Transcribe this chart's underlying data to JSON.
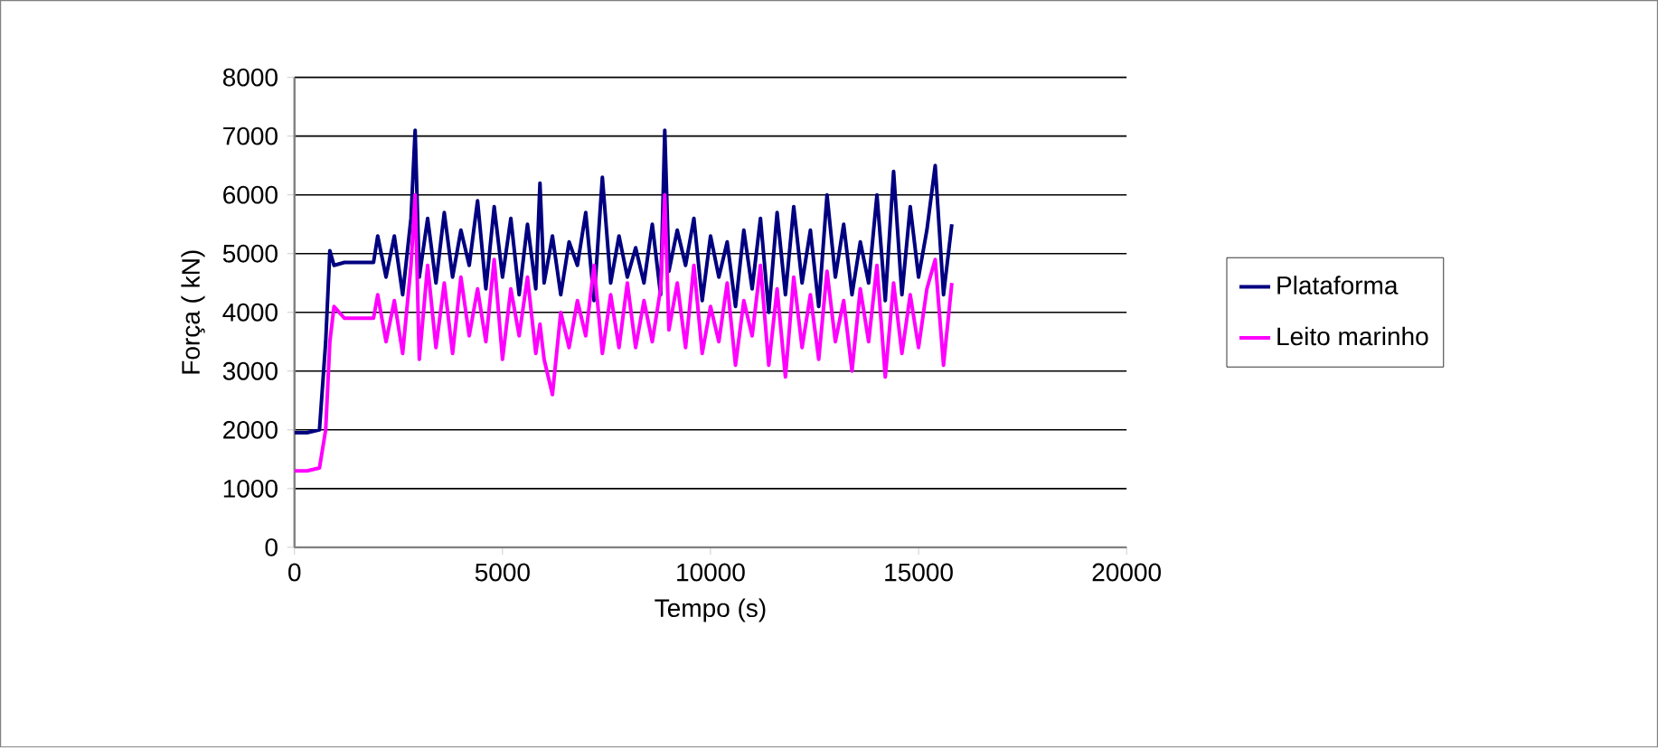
{
  "chart_data": {
    "type": "line",
    "xlabel": "Tempo (s)",
    "ylabel": "Força ( kN)",
    "xlim": [
      0,
      20000
    ],
    "xticks": [
      0,
      5000,
      10000,
      15000,
      20000
    ],
    "ylim": [
      0,
      8000
    ],
    "yticks": [
      0,
      1000,
      2000,
      3000,
      4000,
      5000,
      6000,
      7000,
      8000
    ],
    "grid": "y",
    "legend": "right",
    "marker": "none",
    "line_style": "solid",
    "x": [
      0,
      300,
      600,
      750,
      850,
      950,
      1200,
      1500,
      1900,
      2000,
      2200,
      2400,
      2600,
      2800,
      2900,
      3000,
      3200,
      3400,
      3600,
      3800,
      4000,
      4200,
      4400,
      4600,
      4800,
      5000,
      5200,
      5400,
      5600,
      5800,
      5900,
      6000,
      6200,
      6400,
      6600,
      6800,
      7000,
      7200,
      7400,
      7600,
      7800,
      8000,
      8200,
      8400,
      8600,
      8800,
      8900,
      9000,
      9200,
      9400,
      9600,
      9800,
      10000,
      10200,
      10400,
      10600,
      10800,
      11000,
      11200,
      11400,
      11600,
      11800,
      12000,
      12200,
      12400,
      12600,
      12800,
      13000,
      13200,
      13400,
      13600,
      13800,
      14000,
      14200,
      14400,
      14600,
      14800,
      15000,
      15200,
      15400,
      15600,
      15800
    ],
    "series": [
      {
        "name": "Plataforma",
        "color": "#000080",
        "values": [
          1950,
          1950,
          2000,
          3500,
          5050,
          4800,
          4850,
          4850,
          4850,
          5300,
          4600,
          5300,
          4300,
          5600,
          7100,
          4600,
          5600,
          4500,
          5700,
          4600,
          5400,
          4800,
          5900,
          4400,
          5800,
          4600,
          5600,
          4300,
          5500,
          4400,
          6200,
          4500,
          5300,
          4300,
          5200,
          4800,
          5700,
          4200,
          6300,
          4500,
          5300,
          4600,
          5100,
          4500,
          5500,
          4300,
          7100,
          4700,
          5400,
          4800,
          5600,
          4200,
          5300,
          4600,
          5200,
          4100,
          5400,
          4400,
          5600,
          4000,
          5700,
          4300,
          5800,
          4500,
          5400,
          4100,
          6000,
          4600,
          5500,
          4300,
          5200,
          4500,
          6000,
          4200,
          6400,
          4300,
          5800,
          4600,
          5400,
          6500,
          4300,
          5500
        ]
      },
      {
        "name": "Leito marinho",
        "color": "#ff00ff",
        "values": [
          1300,
          1300,
          1350,
          2000,
          3500,
          4100,
          3900,
          3900,
          3900,
          4300,
          3500,
          4200,
          3300,
          4800,
          6000,
          3200,
          4800,
          3400,
          4500,
          3300,
          4600,
          3600,
          4400,
          3500,
          4900,
          3200,
          4400,
          3600,
          4600,
          3300,
          3800,
          3200,
          2600,
          4000,
          3400,
          4200,
          3600,
          4800,
          3300,
          4300,
          3400,
          4500,
          3400,
          4200,
          3500,
          4400,
          6000,
          3700,
          4500,
          3400,
          4800,
          3300,
          4100,
          3500,
          4500,
          3100,
          4200,
          3600,
          4800,
          3100,
          4400,
          2900,
          4600,
          3400,
          4300,
          3200,
          4700,
          3500,
          4200,
          3000,
          4400,
          3500,
          4800,
          2900,
          4500,
          3300,
          4300,
          3400,
          4400,
          4900,
          3100,
          4500
        ]
      }
    ]
  }
}
